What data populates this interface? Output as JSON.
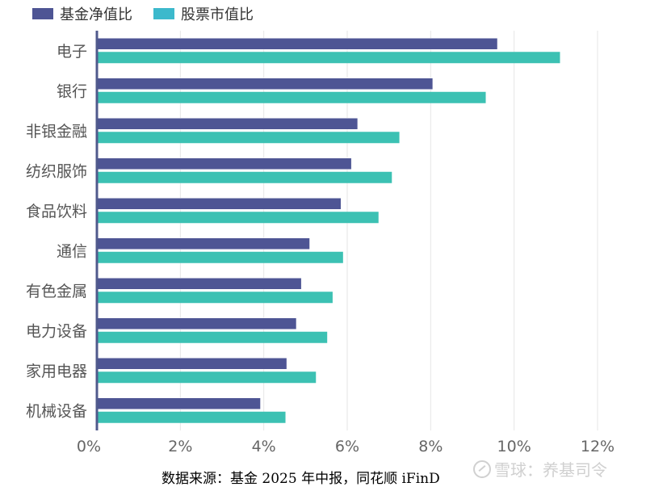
{
  "chart_data": {
    "type": "bar",
    "orientation": "horizontal",
    "categories": [
      "电子",
      "银行",
      "非银金融",
      "纺织服饰",
      "食品饮料",
      "通信",
      "有色金属",
      "电力设备",
      "家用电器",
      "机械设备"
    ],
    "series": [
      {
        "name": "基金净值比",
        "color": "#4e5594",
        "values": [
          9.6,
          8.05,
          6.25,
          6.1,
          5.85,
          5.1,
          4.9,
          4.78,
          4.55,
          3.92
        ]
      },
      {
        "name": "股票市值比",
        "color": "#3cc1b3",
        "values": [
          11.1,
          9.32,
          7.25,
          7.07,
          6.75,
          5.9,
          5.65,
          5.52,
          5.25,
          4.52
        ]
      }
    ],
    "xlim": [
      0,
      12
    ],
    "xticks": [
      0,
      2,
      4,
      6,
      8,
      10,
      12
    ],
    "tick_suffix": "%",
    "grid": true,
    "legend_position": "top-left"
  },
  "legend": [
    {
      "label": "基金净值比",
      "color": "#4e5594"
    },
    {
      "label": "股票市值比",
      "color": "#3cb9cc"
    }
  ],
  "source": "数据来源：基金 2025 年中报，同花顺 iFinD",
  "watermark": "雪球：养基司令"
}
